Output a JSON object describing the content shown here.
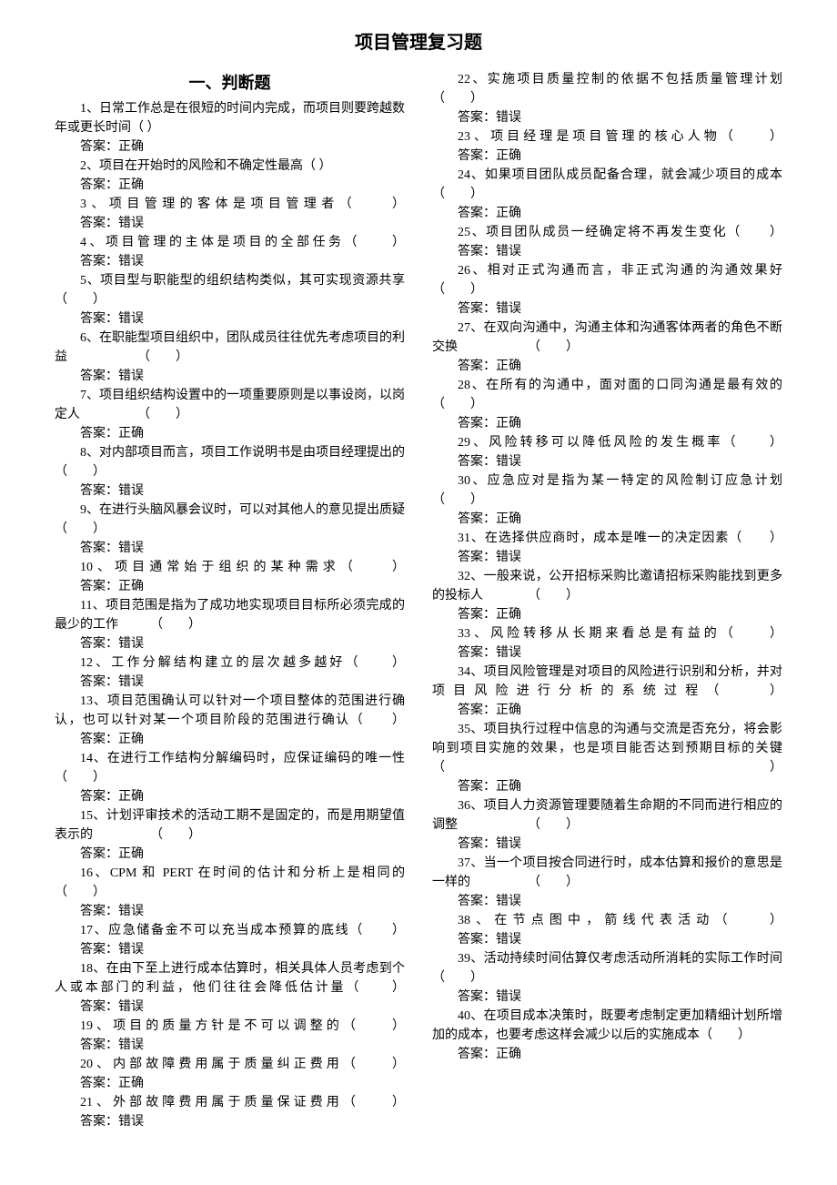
{
  "title": "项目管理复习题",
  "section": "一、判断题",
  "ans_prefix": "答案：",
  "blank": "（　　）",
  "items": [
    {
      "n": "1",
      "q": "日常工作总是在很短的时间内完成，而项目则要跨越数年或更长时间（ ）",
      "a": "正确",
      "wide": false
    },
    {
      "n": "2",
      "q": "项目在开始时的风险和不确定性最高（ ）",
      "a": "正确",
      "wide": false
    },
    {
      "n": "3",
      "q": "项目管理的客体是项目管理者（　　）",
      "a": "错误",
      "wide": true
    },
    {
      "n": "4",
      "q": "项目管理的主体是项目的全部任务（　　）",
      "a": "错误",
      "wide": true
    },
    {
      "n": "5",
      "q": "项目型与职能型的组织结构类似，其可实现资源共享　　　　　　　　（　　）",
      "a": "错误",
      "wide": false
    },
    {
      "n": "6",
      "q": "在职能型项目组织中，团队成员往往优先考虑项目的利益　　　　　　（　　）",
      "a": "错误",
      "wide": false
    },
    {
      "n": "7",
      "q": "项目组织结构设置中的一项重要原则是以事设岗，以岗定人　　　　　（　　）",
      "a": "正确",
      "wide": false
    },
    {
      "n": "8",
      "q": "对内部项目而言，项目工作说明书是由项目经理提出的　　　　　　　（　　）",
      "a": "错误",
      "wide": false
    },
    {
      "n": "9",
      "q": "在进行头脑风暴会议时，可以对其他人的意见提出质疑　　　　　　　（　　）",
      "a": "错误",
      "wide": false
    },
    {
      "n": "10",
      "q": "项目通常始于组织的某种需求（　　）",
      "a": "正确",
      "wide": true
    },
    {
      "n": "11",
      "q": "项目范围是指为了成功地实现项目目标所必须完成的最少的工作　　　（　　）",
      "a": "错误",
      "wide": false
    },
    {
      "n": "12",
      "q": "工作分解结构建立的层次越多越好（　　）",
      "a": "错误",
      "wide": true
    },
    {
      "n": "13",
      "q": "项目范围确认可以针对一个项目整体的范围进行确认，也可以针对某一个项目阶段的范围进行确认（　　）",
      "a": "正确",
      "wide": true
    },
    {
      "n": "14",
      "q": "在进行工作结构分解编码时，应保证编码的唯一性　　　　　　　　　（　　）",
      "a": "正确",
      "wide": false
    },
    {
      "n": "15",
      "q": "计划评审技术的活动工期不是固定的，而是用期望值表示的　　　　　（　　）",
      "a": "正确",
      "wide": false
    },
    {
      "n": "16",
      "q": "CPM 和 PERT 在时间的估计和分析上是相同的　　　　　　　　　　　（　　）",
      "a": "错误",
      "wide": false
    },
    {
      "n": "17",
      "q": "应急储备金不可以充当成本预算的底线（　　）",
      "a": "错误",
      "wide": true
    },
    {
      "n": "18",
      "q": "在由下至上进行成本估算时，相关具体人员考虑到个人或本部门的利益，他们往往会降低估计量（　　）",
      "a": "错误",
      "wide": true
    },
    {
      "n": "19",
      "q": "项目的质量方针是不可以调整的（　　）",
      "a": "错误",
      "wide": true
    },
    {
      "n": "20",
      "q": "内部故障费用属于质量纠正费用（　　）",
      "a": "正确",
      "wide": true
    },
    {
      "n": "21",
      "q": "外部故障费用属于质量保证费用（　　）",
      "a": "错误",
      "wide": true
    },
    {
      "n": "22",
      "q": "实施项目质量控制的依据不包括质量管理计划　　　　　　　　　　　（　　）",
      "a": "错误",
      "wide": false
    },
    {
      "n": "23",
      "q": "项目经理是项目管理的核心人物（　　）",
      "a": "正确",
      "wide": true
    },
    {
      "n": "24",
      "q": "如果项目团队成员配备合理，就会减少项目的成本　　　　　　　　　（　　）",
      "a": "正确",
      "wide": false
    },
    {
      "n": "25",
      "q": "项目团队成员一经确定将不再发生变化（　　）",
      "a": "错误",
      "wide": true
    },
    {
      "n": "26",
      "q": "相对正式沟通而言，非正式沟通的沟通效果好　　　　　　　　　　　（　　）",
      "a": "错误",
      "wide": false
    },
    {
      "n": "27",
      "q": "在双向沟通中，沟通主体和沟通客体两者的角色不断交换　　　　　　（　　）",
      "a": "正确",
      "wide": false
    },
    {
      "n": "28",
      "q": "在所有的沟通中，面对面的口同沟通是最有效的　　　　　　　　　　（　　）",
      "a": "正确",
      "wide": false
    },
    {
      "n": "29",
      "q": "风险转移可以降低风险的发生概率（　　）",
      "a": "错误",
      "wide": true
    },
    {
      "n": "30",
      "q": "应急应对是指为某一特定的风险制订应急计划　　　　　　　　　　　（　　）",
      "a": "正确",
      "wide": false
    },
    {
      "n": "31",
      "q": "在选择供应商时，成本是唯一的决定因素（　　）",
      "a": "错误",
      "wide": true
    },
    {
      "n": "32",
      "q": "一般来说，公开招标采购比邀请招标采购能找到更多的投标人　　　　（　　）",
      "a": "正确",
      "wide": false
    },
    {
      "n": "33",
      "q": "风险转移从长期来看总是有益的（　　）",
      "a": "错误",
      "wide": true
    },
    {
      "n": "34",
      "q": "项目风险管理是对项目的风险进行识别和分析，并对项目风险进行分析的系统过程（　　）",
      "a": "正确",
      "wide": true
    },
    {
      "n": "35",
      "q": "项目执行过程中信息的沟通与交流是否充分，将会影响到项目实施的效果，也是项目能否达到预期目标的关键（　　）",
      "a": "正确",
      "wide": true
    },
    {
      "n": "36",
      "q": "项目人力资源管理要随着生命期的不同而进行相应的调整　　　　　　（　　）",
      "a": "错误",
      "wide": false
    },
    {
      "n": "37",
      "q": "当一个项目按合同进行时，成本估算和报价的意思是一样的　　　　　（　　）",
      "a": "错误",
      "wide": false
    },
    {
      "n": "38",
      "q": "在节点图中，箭线代表活动（　　）",
      "a": "错误",
      "wide": true
    },
    {
      "n": "39",
      "q": "活动持续时间估算仅考虑活动所消耗的实际工作时间　　　　　　　　（　　）",
      "a": "错误",
      "wide": false
    },
    {
      "n": "40",
      "q": "在项目成本决策时，既要考虑制定更加精细计划所增加的成本，也要考虑这样会减少以后的实施成本（　　）",
      "a": "正确",
      "wide": false
    }
  ]
}
